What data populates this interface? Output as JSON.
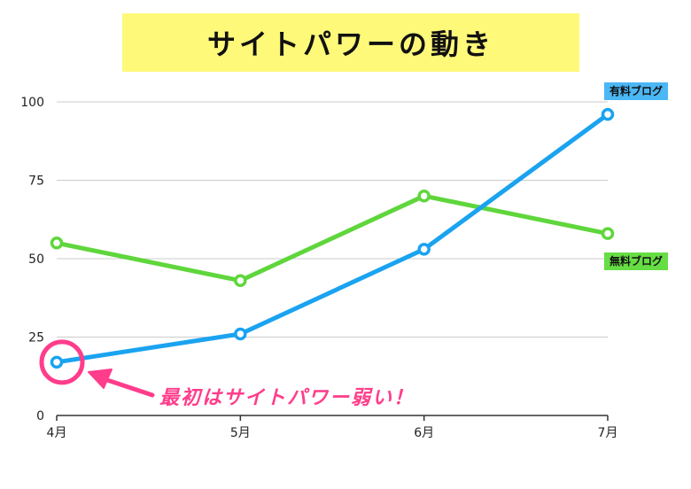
{
  "chart_data": {
    "type": "line",
    "title": "サイトパワーの動き",
    "categories": [
      "4月",
      "5月",
      "6月",
      "7月"
    ],
    "ylim": [
      0,
      100
    ],
    "yticks": [
      0,
      25,
      50,
      75,
      100
    ],
    "grid": true,
    "series": [
      {
        "name": "有料ブログ",
        "values": [
          17,
          26,
          53,
          96
        ],
        "color": "#1aa3f0"
      },
      {
        "name": "無料ブログ",
        "values": [
          55,
          43,
          70,
          58
        ],
        "color": "#5fd63c"
      }
    ],
    "annotation": {
      "text": "最初はサイトパワー弱い！",
      "color": "#ff3d8b",
      "target_category": "4月",
      "target_series": 0
    }
  },
  "colors": {
    "title_bg": "#fff97a",
    "paid_tag_bg": "#4bb7f5",
    "free_tag_bg": "#66dd44",
    "grid": "#cccccc",
    "axis": "#333333"
  }
}
